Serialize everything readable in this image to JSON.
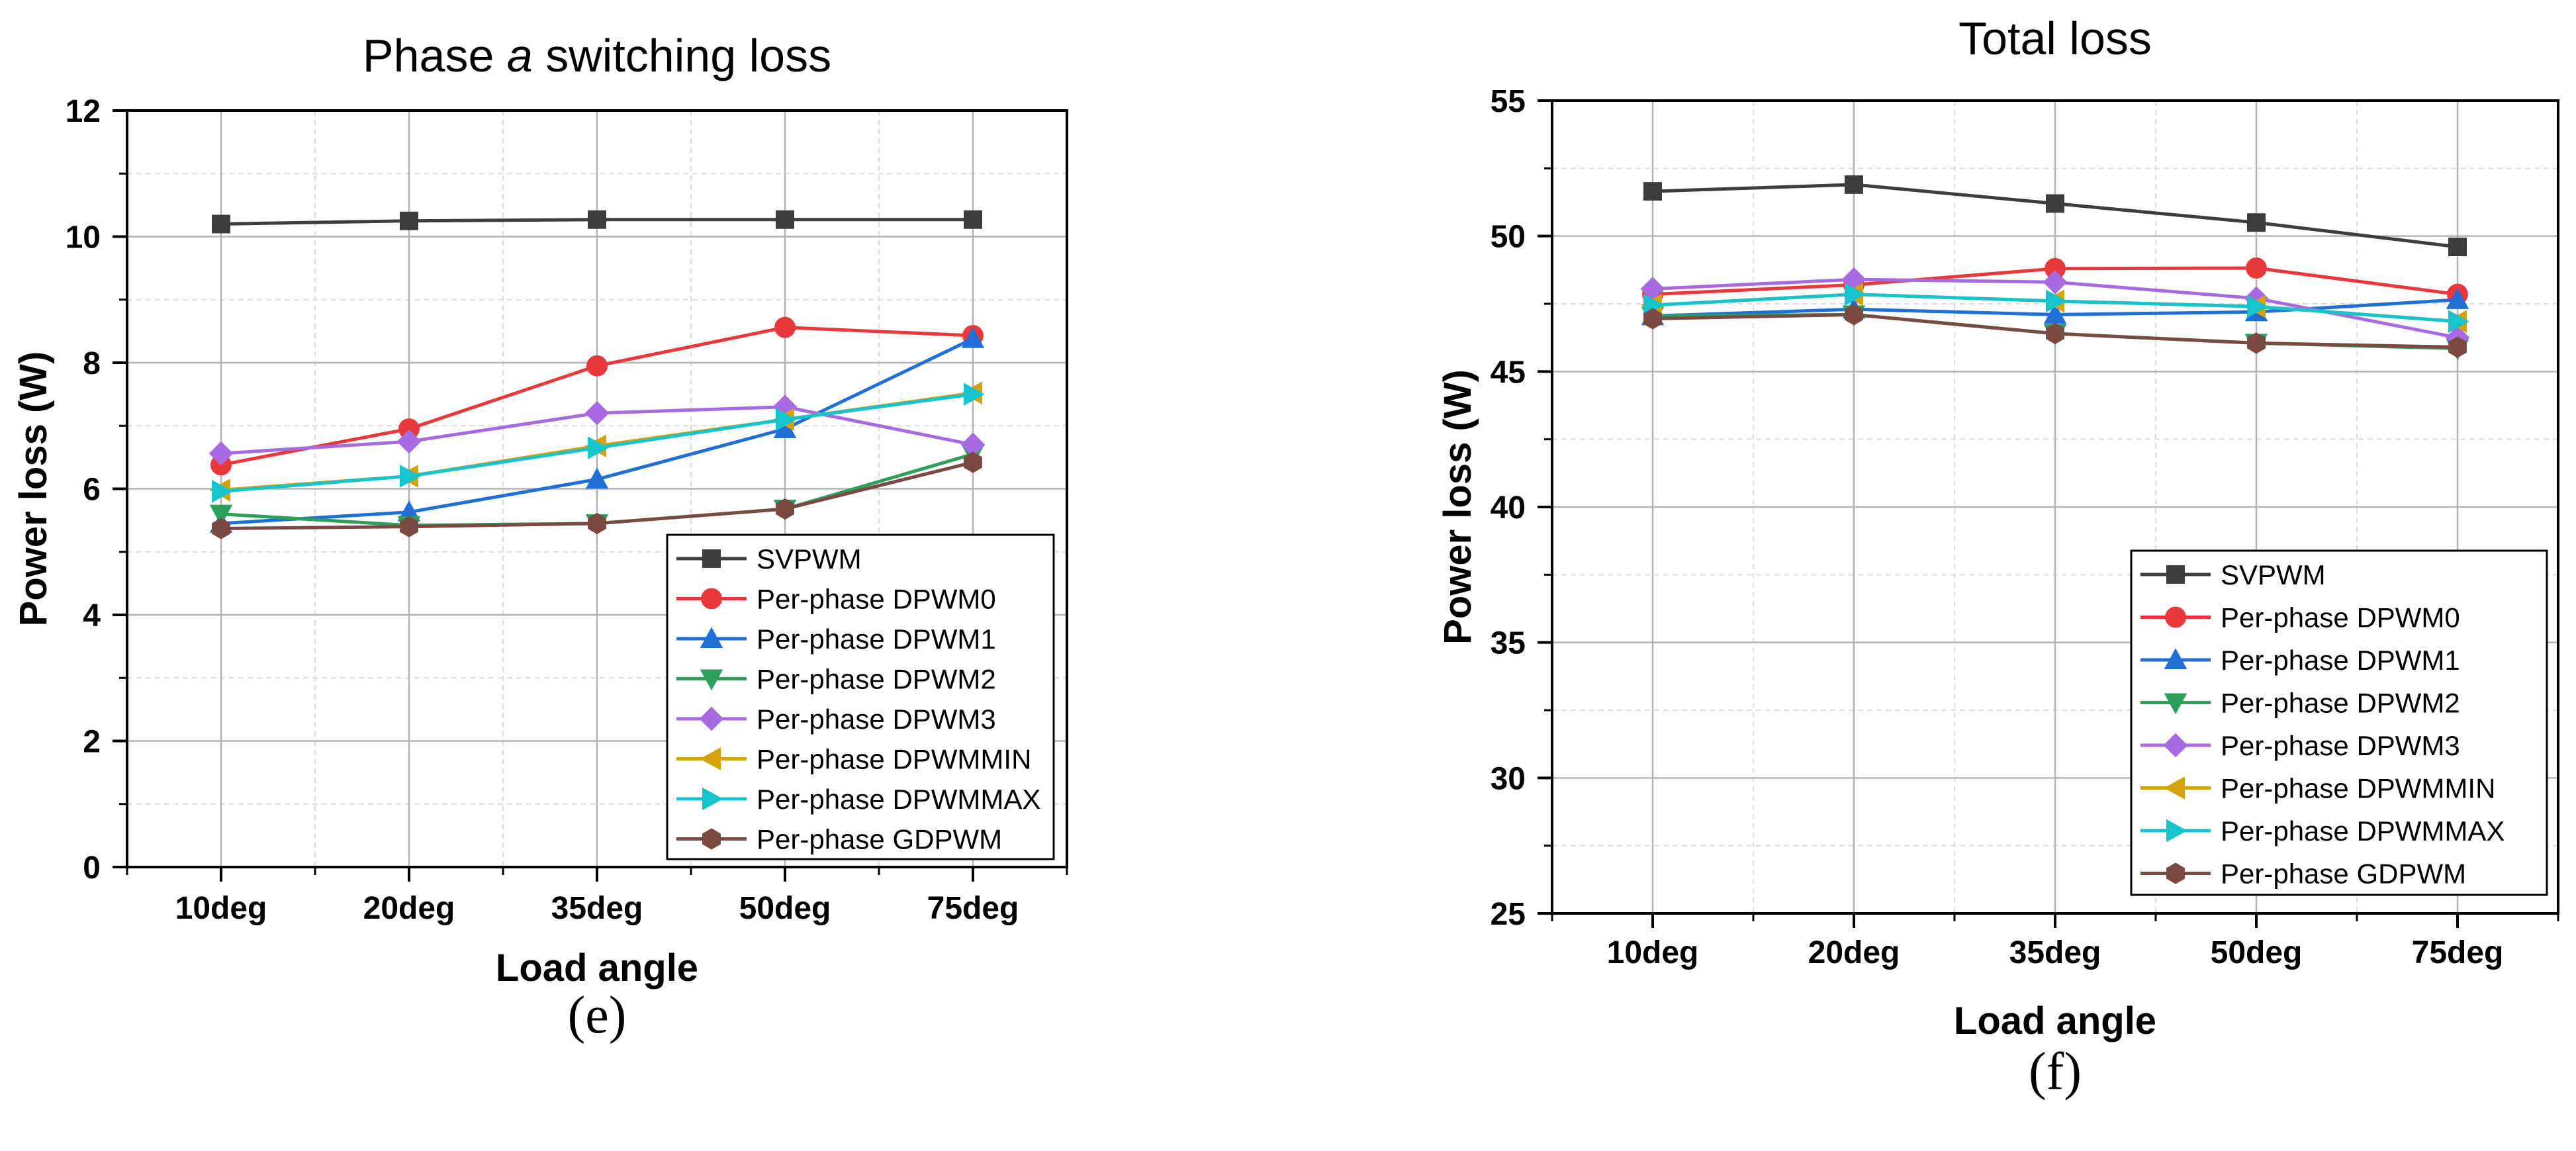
{
  "colors": {
    "SVPWM": "#3d3d3d",
    "DPWM0": "#e8383b",
    "DPWM1": "#1f6fd6",
    "DPWM2": "#2e9e5b",
    "DPWM3": "#a86ae0",
    "DPWMMIN": "#d4a20a",
    "DPWMMAX": "#17c3cd",
    "GDPWM": "#7a4a42"
  },
  "chart_data": [
    {
      "type": "line",
      "title_prefix": "Phase ",
      "title_italic": "a",
      "title_suffix": " switching loss",
      "caption": "(e)",
      "xlabel": "Load angle",
      "ylabel": "Power loss (W)",
      "categories": [
        "10deg",
        "20deg",
        "35deg",
        "50deg",
        "75deg"
      ],
      "ylim": [
        0,
        12
      ],
      "yticks": [
        0,
        2,
        4,
        6,
        8,
        10,
        12
      ],
      "grid": true,
      "legend_position": "bottom-right",
      "series": [
        {
          "name": "SVPWM",
          "marker": "square",
          "values": [
            10.2,
            10.25,
            10.27,
            10.27,
            10.27
          ]
        },
        {
          "name": "Per-phase DPWM0",
          "marker": "circle",
          "values": [
            6.38,
            6.95,
            7.95,
            8.56,
            8.43
          ]
        },
        {
          "name": "Per-phase DPWM1",
          "marker": "triangle-up",
          "values": [
            5.45,
            5.63,
            6.15,
            6.95,
            8.38
          ]
        },
        {
          "name": "Per-phase DPWM2",
          "marker": "triangle-down",
          "values": [
            5.6,
            5.42,
            5.45,
            5.68,
            6.55
          ]
        },
        {
          "name": "Per-phase DPWM3",
          "marker": "diamond",
          "values": [
            6.56,
            6.75,
            7.2,
            7.3,
            6.7
          ]
        },
        {
          "name": "Per-phase DPWMMIN",
          "marker": "triangle-left",
          "values": [
            5.98,
            6.2,
            6.68,
            7.1,
            7.52
          ]
        },
        {
          "name": "Per-phase DPWMMAX",
          "marker": "triangle-right",
          "values": [
            5.96,
            6.2,
            6.65,
            7.1,
            7.5
          ]
        },
        {
          "name": "Per-phase GDPWM",
          "marker": "hexagon",
          "values": [
            5.37,
            5.4,
            5.45,
            5.68,
            6.42
          ]
        }
      ]
    },
    {
      "type": "line",
      "title_prefix": "Total loss",
      "title_italic": "",
      "title_suffix": "",
      "caption": "(f)",
      "xlabel": "Load angle",
      "ylabel": "Power loss (W)",
      "categories": [
        "10deg",
        "20deg",
        "35deg",
        "50deg",
        "75deg"
      ],
      "ylim": [
        25,
        55
      ],
      "yticks": [
        25,
        30,
        35,
        40,
        45,
        50,
        55
      ],
      "grid": true,
      "legend_position": "bottom-right",
      "series": [
        {
          "name": "SVPWM",
          "marker": "square",
          "values": [
            51.65,
            51.9,
            51.2,
            50.5,
            49.6
          ]
        },
        {
          "name": "Per-phase DPWM0",
          "marker": "circle",
          "values": [
            47.85,
            48.2,
            48.8,
            48.82,
            47.85
          ]
        },
        {
          "name": "Per-phase DPWM1",
          "marker": "triangle-up",
          "values": [
            47.05,
            47.3,
            47.1,
            47.2,
            47.65
          ]
        },
        {
          "name": "Per-phase DPWM2",
          "marker": "triangle-down",
          "values": [
            47.05,
            47.1,
            46.4,
            46.05,
            45.85
          ]
        },
        {
          "name": "Per-phase DPWM3",
          "marker": "diamond",
          "values": [
            48.05,
            48.4,
            48.3,
            47.7,
            46.25
          ]
        },
        {
          "name": "Per-phase DPWMMIN",
          "marker": "triangle-left",
          "values": [
            47.45,
            47.85,
            47.6,
            47.4,
            46.85
          ]
        },
        {
          "name": "Per-phase DPWMMAX",
          "marker": "triangle-right",
          "values": [
            47.45,
            47.85,
            47.6,
            47.4,
            46.85
          ]
        },
        {
          "name": "Per-phase GDPWM",
          "marker": "hexagon",
          "values": [
            46.95,
            47.1,
            46.4,
            46.05,
            45.9
          ]
        }
      ]
    }
  ]
}
